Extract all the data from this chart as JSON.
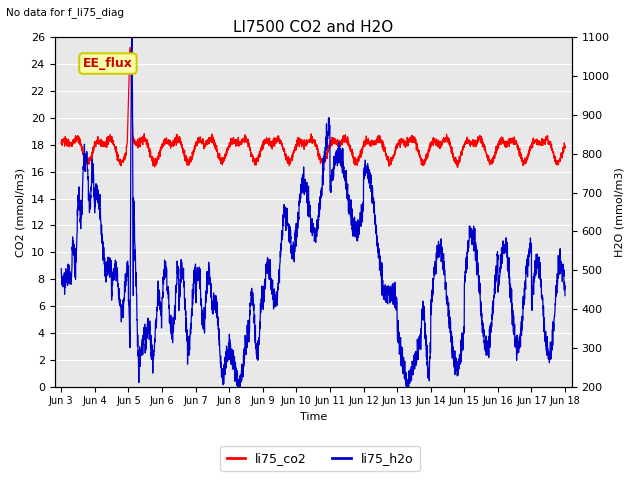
{
  "title": "LI7500 CO2 and H2O",
  "top_left_text": "No data for f_li75_diag",
  "ee_flux_label": "EE_flux",
  "xlabel": "Time",
  "ylabel_left": "CO2 (mmol/m3)",
  "ylabel_right": "H2O (mmol/m3)",
  "ylim_left": [
    0,
    26
  ],
  "ylim_right": [
    200,
    1100
  ],
  "yticks_left": [
    0,
    2,
    4,
    6,
    8,
    10,
    12,
    14,
    16,
    18,
    20,
    22,
    24,
    26
  ],
  "yticks_right": [
    200,
    300,
    400,
    500,
    600,
    700,
    800,
    900,
    1000,
    1100
  ],
  "xtick_labels": [
    "Jun 3",
    "Jun 4",
    "Jun 5",
    "Jun 6",
    "Jun 7",
    "Jun 8",
    "Jun 9",
    "Jun 10",
    "Jun 11",
    "Jun 12",
    "Jun 13",
    "Jun 14",
    "Jun 15",
    "Jun 16",
    "Jun 17",
    "Jun 18"
  ],
  "co2_color": "#ff0000",
  "h2o_color": "#0000cc",
  "plot_bg_color": "#e8e8e8",
  "fig_bg_color": "#ffffff",
  "grid_color": "#ffffff",
  "legend_co2": "li75_co2",
  "legend_h2o": "li75_h2o",
  "ee_flux_box_facecolor": "#ffffaa",
  "ee_flux_box_edgecolor": "#cccc00",
  "ee_flux_text_color": "#cc0000"
}
